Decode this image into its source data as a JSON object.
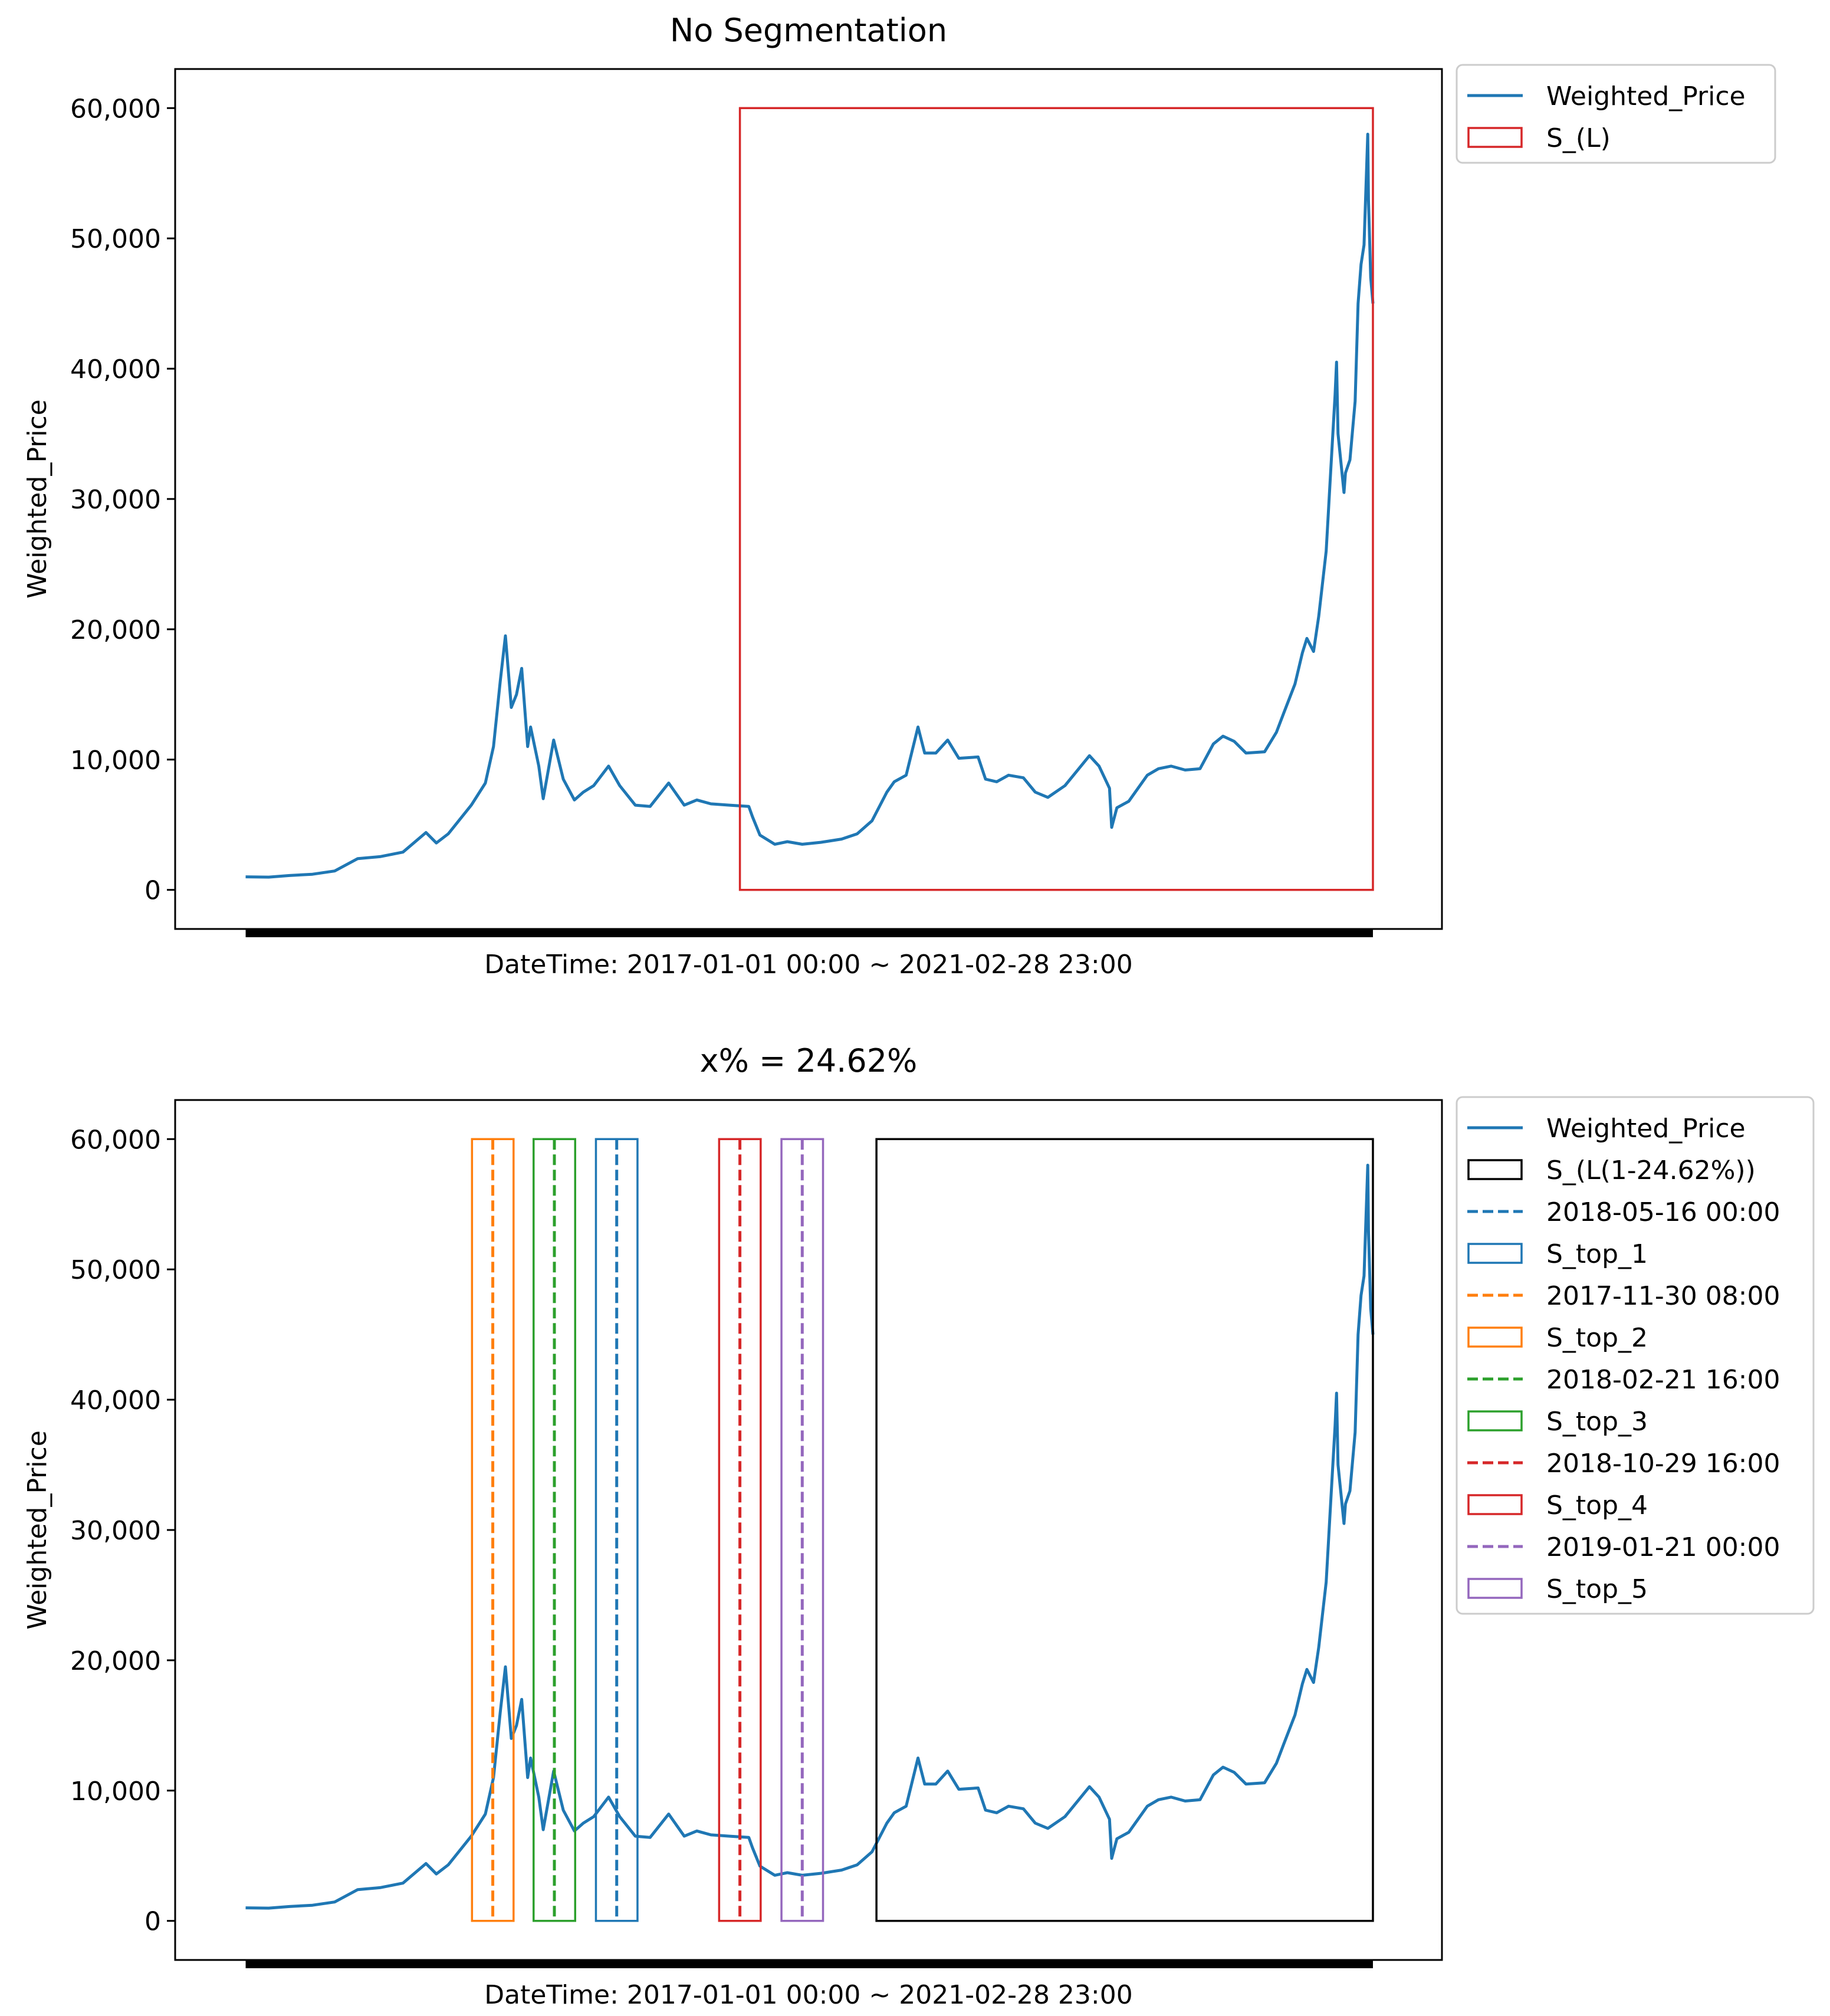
{
  "chart_data": [
    {
      "type": "line",
      "title": "No Segmentation",
      "xlabel": "DateTime: 2017-01-01 00:00 ~ 2021-02-28 23:00",
      "ylabel": "Weighted_Price",
      "ylim": [
        -3000,
        63000
      ],
      "xlim": [
        "2016-09-28",
        "2021-06-01"
      ],
      "x_range": [
        "2017-01-01",
        "2021-02-28"
      ],
      "grid": false,
      "y_ticks": [
        0,
        10000,
        20000,
        30000,
        40000,
        50000,
        60000
      ],
      "y_tick_labels": [
        "0",
        "10,000",
        "20,000",
        "30,000",
        "40,000",
        "50,000",
        "60,000"
      ],
      "legend_position": "outside-top-right",
      "series": [
        {
          "name": "Weighted_Price",
          "color": "#1f77b4",
          "x": [
            "2017-01-01",
            "2017-02-01",
            "2017-03-01",
            "2017-04-01",
            "2017-05-01",
            "2017-06-01",
            "2017-07-01",
            "2017-08-01",
            "2017-09-01",
            "2017-09-15",
            "2017-10-01",
            "2017-11-01",
            "2017-11-20",
            "2017-12-01",
            "2017-12-10",
            "2017-12-17",
            "2017-12-25",
            "2018-01-01",
            "2018-01-08",
            "2018-01-16",
            "2018-01-20",
            "2018-01-31",
            "2018-02-06",
            "2018-02-20",
            "2018-03-05",
            "2018-03-20",
            "2018-04-01",
            "2018-04-15",
            "2018-05-05",
            "2018-05-20",
            "2018-06-10",
            "2018-06-30",
            "2018-07-25",
            "2018-08-15",
            "2018-09-01",
            "2018-09-20",
            "2018-10-15",
            "2018-11-10",
            "2018-11-15",
            "2018-11-25",
            "2018-12-15",
            "2019-01-01",
            "2019-01-21",
            "2019-02-15",
            "2019-03-15",
            "2019-04-05",
            "2019-04-25",
            "2019-05-15",
            "2019-05-25",
            "2019-06-10",
            "2019-06-26",
            "2019-07-05",
            "2019-07-20",
            "2019-08-05",
            "2019-08-20",
            "2019-09-15",
            "2019-09-25",
            "2019-10-10",
            "2019-10-26",
            "2019-11-15",
            "2019-12-01",
            "2019-12-18",
            "2020-01-10",
            "2020-02-12",
            "2020-02-25",
            "2020-03-10",
            "2020-03-13",
            "2020-03-20",
            "2020-04-05",
            "2020-04-30",
            "2020-05-15",
            "2020-06-01",
            "2020-06-20",
            "2020-07-10",
            "2020-07-28",
            "2020-08-10",
            "2020-08-25",
            "2020-09-10",
            "2020-10-05",
            "2020-10-21",
            "2020-10-31",
            "2020-11-15",
            "2020-11-25",
            "2020-12-01",
            "2020-12-10",
            "2020-12-17",
            "2020-12-27",
            "2021-01-02",
            "2021-01-08",
            "2021-01-10",
            "2021-01-12",
            "2021-01-20",
            "2021-01-22",
            "2021-01-28",
            "2021-02-04",
            "2021-02-08",
            "2021-02-12",
            "2021-02-16",
            "2021-02-21",
            "2021-02-22",
            "2021-02-25",
            "2021-02-28"
          ],
          "y": [
            1000,
            980,
            1100,
            1200,
            1450,
            2400,
            2550,
            2900,
            4400,
            3600,
            4300,
            6500,
            8200,
            11000,
            16000,
            19500,
            14000,
            15000,
            17000,
            11000,
            12500,
            9500,
            7000,
            11500,
            8500,
            6900,
            7500,
            8000,
            9500,
            8000,
            6500,
            6400,
            8200,
            6500,
            6900,
            6600,
            6500,
            6400,
            5600,
            4200,
            3500,
            3700,
            3500,
            3650,
            3900,
            4300,
            5300,
            7500,
            8300,
            8800,
            12500,
            10500,
            10500,
            11500,
            10100,
            10200,
            8500,
            8300,
            8800,
            8600,
            7500,
            7100,
            8000,
            10300,
            9500,
            7800,
            4800,
            6300,
            6800,
            8800,
            9300,
            9500,
            9200,
            9300,
            11200,
            11800,
            11400,
            10500,
            10600,
            12100,
            13600,
            15800,
            18200,
            19300,
            18300,
            21000,
            26000,
            32000,
            38000,
            40500,
            35000,
            30500,
            32000,
            33000,
            37500,
            45000,
            48000,
            49500,
            58000,
            53000,
            47000,
            45000
          ]
        }
      ],
      "shapes": [
        {
          "kind": "rect",
          "legend": "S_(L)",
          "color": "#d62728",
          "x0": "2018-10-29",
          "x1": "2021-02-28",
          "y0": 0,
          "y1": 60000
        }
      ],
      "legend": [
        {
          "label": "Weighted_Price",
          "kind": "line",
          "color": "#1f77b4"
        },
        {
          "label": "S_(L)",
          "kind": "rect",
          "color": "#d62728"
        }
      ]
    },
    {
      "type": "line",
      "title": "x% = 24.62%",
      "xlabel": "DateTime: 2017-01-01 00:00 ~ 2021-02-28 23:00",
      "ylabel": "Weighted_Price",
      "ylim": [
        -3000,
        63000
      ],
      "xlim": [
        "2016-09-28",
        "2021-06-01"
      ],
      "x_range": [
        "2017-01-01",
        "2021-02-28"
      ],
      "grid": false,
      "y_ticks": [
        0,
        10000,
        20000,
        30000,
        40000,
        50000,
        60000
      ],
      "y_tick_labels": [
        "0",
        "10,000",
        "20,000",
        "30,000",
        "40,000",
        "50,000",
        "60,000"
      ],
      "legend_position": "outside-top-right",
      "series": [
        {
          "name": "Weighted_Price",
          "color": "#1f77b4",
          "same_as_chart": 0
        }
      ],
      "shapes": [
        {
          "kind": "rect",
          "legend": "S_(L(1-24.62%))",
          "color": "#000000",
          "x0": "2019-05-01",
          "x1": "2021-02-28",
          "y0": 0,
          "y1": 60000
        },
        {
          "kind": "vline",
          "legend": "2018-05-16 00:00",
          "color": "#1f77b4",
          "x": "2018-05-16"
        },
        {
          "kind": "rect",
          "legend": "S_top_1",
          "color": "#1f77b4",
          "x0": "2018-04-18",
          "x1": "2018-06-13",
          "y0": 0,
          "y1": 60000
        },
        {
          "kind": "vline",
          "legend": "2017-11-30 08:00",
          "color": "#ff7f0e",
          "x": "2017-11-30"
        },
        {
          "kind": "rect",
          "legend": "S_top_2",
          "color": "#ff7f0e",
          "x0": "2017-11-02",
          "x1": "2017-12-28",
          "y0": 0,
          "y1": 60000
        },
        {
          "kind": "vline",
          "legend": "2018-02-21 16:00",
          "color": "#2ca02c",
          "x": "2018-02-21"
        },
        {
          "kind": "rect",
          "legend": "S_top_3",
          "color": "#2ca02c",
          "x0": "2018-01-24",
          "x1": "2018-03-21",
          "y0": 0,
          "y1": 60000
        },
        {
          "kind": "vline",
          "legend": "2018-10-29 16:00",
          "color": "#d62728",
          "x": "2018-10-29"
        },
        {
          "kind": "rect",
          "legend": "S_top_4",
          "color": "#d62728",
          "x0": "2018-10-01",
          "x1": "2018-11-26",
          "y0": 0,
          "y1": 60000
        },
        {
          "kind": "vline",
          "legend": "2019-01-21 00:00",
          "color": "#9467bd",
          "x": "2019-01-21"
        },
        {
          "kind": "rect",
          "legend": "S_top_5",
          "color": "#9467bd",
          "x0": "2018-12-24",
          "x1": "2019-02-18",
          "y0": 0,
          "y1": 60000
        }
      ],
      "legend": [
        {
          "label": "Weighted_Price",
          "kind": "line",
          "color": "#1f77b4"
        },
        {
          "label": "S_(L(1-24.62%))",
          "kind": "rect",
          "color": "#000000"
        },
        {
          "label": "2018-05-16 00:00",
          "kind": "dash",
          "color": "#1f77b4"
        },
        {
          "label": "S_top_1",
          "kind": "rect",
          "color": "#1f77b4"
        },
        {
          "label": "2017-11-30 08:00",
          "kind": "dash",
          "color": "#ff7f0e"
        },
        {
          "label": "S_top_2",
          "kind": "rect",
          "color": "#ff7f0e"
        },
        {
          "label": "2018-02-21 16:00",
          "kind": "dash",
          "color": "#2ca02c"
        },
        {
          "label": "S_top_3",
          "kind": "rect",
          "color": "#2ca02c"
        },
        {
          "label": "2018-10-29 16:00",
          "kind": "dash",
          "color": "#d62728"
        },
        {
          "label": "S_top_4",
          "kind": "rect",
          "color": "#d62728"
        },
        {
          "label": "2019-01-21 00:00",
          "kind": "dash",
          "color": "#9467bd"
        },
        {
          "label": "S_top_5",
          "kind": "rect",
          "color": "#9467bd"
        }
      ]
    }
  ]
}
